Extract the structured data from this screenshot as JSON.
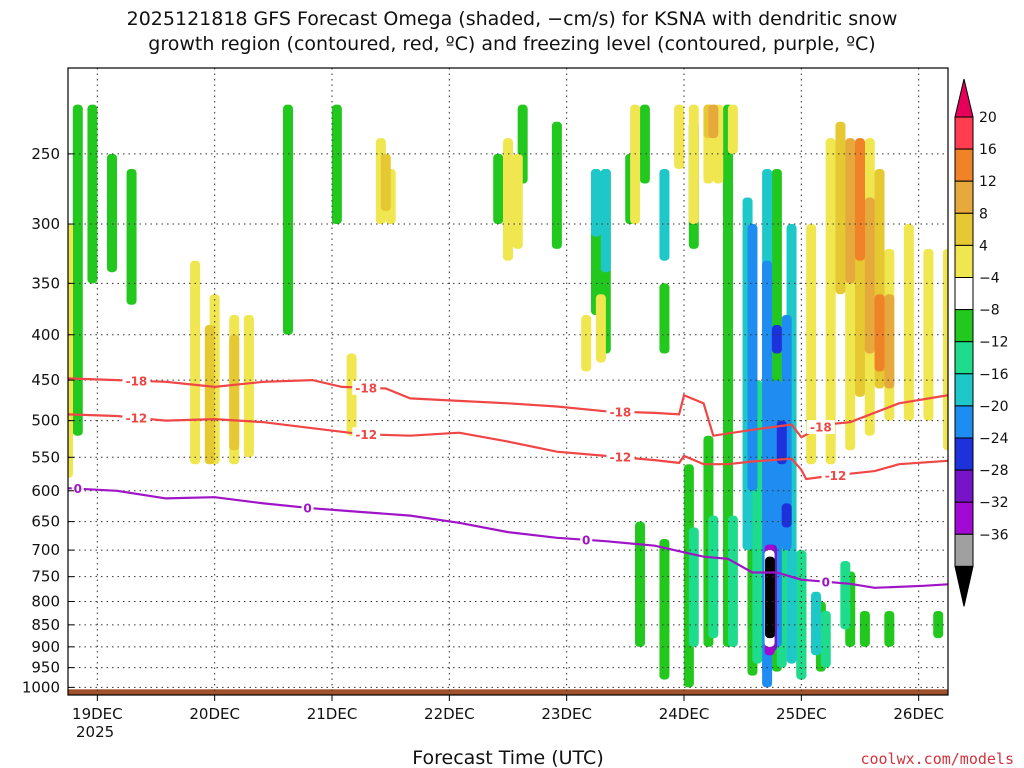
{
  "chart_data": {
    "type": "heatmap",
    "title_line1": "2025121818 GFS Forecast Omega (shaded, −cm/s) for KSNA with dendritic snow",
    "title_line2": "growth region (contoured, red, ºC) and freezing level (contoured, purple, ºC)",
    "xlabel": "Forecast Time (UTC)",
    "credit": "coolwx.com/models",
    "year_label": "2025",
    "x_ticks": [
      {
        "label": "19DEC",
        "hour": 6
      },
      {
        "label": "20DEC",
        "hour": 30
      },
      {
        "label": "21DEC",
        "hour": 54
      },
      {
        "label": "22DEC",
        "hour": 78
      },
      {
        "label": "23DEC",
        "hour": 102
      },
      {
        "label": "24DEC",
        "hour": 126
      },
      {
        "label": "25DEC",
        "hour": 150
      },
      {
        "label": "26DEC",
        "hour": 174
      }
    ],
    "xlim_hours": [
      0,
      180
    ],
    "y_ticks": [
      {
        "label": "250",
        "p": 250
      },
      {
        "label": "300",
        "p": 300
      },
      {
        "label": "350",
        "p": 350
      },
      {
        "label": "400",
        "p": 400
      },
      {
        "label": "450",
        "p": 450
      },
      {
        "label": "500",
        "p": 500
      },
      {
        "label": "550",
        "p": 550
      },
      {
        "label": "600",
        "p": 600
      },
      {
        "label": "650",
        "p": 650
      },
      {
        "label": "700",
        "p": 700
      },
      {
        "label": "750",
        "p": 750
      },
      {
        "label": "800",
        "p": 800
      },
      {
        "label": "850",
        "p": 850
      },
      {
        "label": "900",
        "p": 900
      },
      {
        "label": "950",
        "p": 950
      },
      {
        "label": "1000",
        "p": 1000
      }
    ],
    "ylim_hpa": [
      200,
      1020
    ],
    "y_scale": "log-pressure",
    "grid": true,
    "colorbar": {
      "labels": [
        "20",
        "16",
        "12",
        "8",
        "4",
        "−4",
        "−8",
        "−12",
        "−16",
        "−20",
        "−24",
        "−28",
        "−32",
        "−36"
      ],
      "colors": [
        "#ff3c50",
        "#f08228",
        "#e6aa3c",
        "#e6c832",
        "#f0e650",
        "#ffffff",
        "#22c81e",
        "#1edc8c",
        "#1ec8c8",
        "#1e8cf0",
        "#1e32dc",
        "#7814c8",
        "#a00ad2",
        "#a0a0a0"
      ],
      "top_arrow_color": "#e6005a",
      "bottom_arrow_color": "#000000"
    },
    "contours": [
      {
        "label": "-18",
        "color": "#f04646",
        "points": [
          [
            0,
            448
          ],
          [
            10,
            450
          ],
          [
            20,
            452
          ],
          [
            30,
            458
          ],
          [
            40,
            452
          ],
          [
            50,
            450
          ],
          [
            56,
            458
          ],
          [
            65,
            460
          ],
          [
            70,
            472
          ],
          [
            80,
            475
          ],
          [
            90,
            478
          ],
          [
            100,
            482
          ],
          [
            110,
            488
          ],
          [
            120,
            490
          ],
          [
            125,
            492
          ],
          [
            126,
            468
          ],
          [
            130,
            478
          ],
          [
            132,
            520
          ],
          [
            140,
            512
          ],
          [
            148,
            505
          ],
          [
            150,
            522
          ],
          [
            155,
            505
          ],
          [
            160,
            502
          ],
          [
            170,
            478
          ],
          [
            180,
            468
          ]
        ],
        "label_hours": [
          14,
          61,
          113,
          154
        ]
      },
      {
        "label": "-12",
        "color": "#f04646",
        "points": [
          [
            0,
            492
          ],
          [
            10,
            494
          ],
          [
            20,
            500
          ],
          [
            30,
            498
          ],
          [
            40,
            502
          ],
          [
            50,
            510
          ],
          [
            60,
            518
          ],
          [
            70,
            520
          ],
          [
            80,
            516
          ],
          [
            90,
            528
          ],
          [
            100,
            542
          ],
          [
            110,
            548
          ],
          [
            120,
            554
          ],
          [
            125,
            558
          ],
          [
            126,
            548
          ],
          [
            130,
            560
          ],
          [
            135,
            560
          ],
          [
            140,
            556
          ],
          [
            148,
            552
          ],
          [
            150,
            568
          ],
          [
            151,
            582
          ],
          [
            155,
            578
          ],
          [
            160,
            574
          ],
          [
            165,
            570
          ],
          [
            170,
            560
          ],
          [
            180,
            555
          ]
        ],
        "label_hours": [
          14,
          61,
          113,
          157
        ]
      },
      {
        "label": "0",
        "color": "#a014c8",
        "points": [
          [
            0,
            596
          ],
          [
            10,
            600
          ],
          [
            20,
            612
          ],
          [
            30,
            610
          ],
          [
            40,
            620
          ],
          [
            50,
            628
          ],
          [
            60,
            634
          ],
          [
            70,
            640
          ],
          [
            80,
            652
          ],
          [
            90,
            668
          ],
          [
            100,
            678
          ],
          [
            110,
            684
          ],
          [
            120,
            692
          ],
          [
            125,
            702
          ],
          [
            130,
            712
          ],
          [
            135,
            716
          ],
          [
            140,
            742
          ],
          [
            145,
            742
          ],
          [
            150,
            756
          ],
          [
            160,
            764
          ],
          [
            165,
            772
          ],
          [
            175,
            768
          ],
          [
            180,
            765
          ]
        ],
        "label_hours": [
          2,
          49,
          106,
          155
        ]
      }
    ],
    "shaded_regions": [
      {
        "color": "#22c81e",
        "cells": [
          [
            2,
            220,
            520
          ],
          [
            5,
            220,
            350
          ],
          [
            9,
            250,
            340
          ],
          [
            13,
            260,
            370
          ],
          [
            45,
            220,
            400
          ],
          [
            55,
            220,
            300
          ],
          [
            88,
            250,
            300
          ],
          [
            93,
            220,
            270
          ],
          [
            100,
            230,
            320
          ],
          [
            108,
            260,
            380
          ],
          [
            110,
            260,
            420
          ],
          [
            115,
            250,
            300
          ],
          [
            118,
            220,
            270
          ],
          [
            122,
            350,
            420
          ],
          [
            128,
            230,
            320
          ],
          [
            117,
            650,
            900
          ],
          [
            122,
            680,
            980
          ],
          [
            127,
            560,
            1000
          ],
          [
            131,
            520,
            900
          ],
          [
            135,
            220,
            900
          ],
          [
            140,
            620,
            970
          ],
          [
            145,
            260,
            960
          ],
          [
            150,
            700,
            980
          ],
          [
            154,
            800,
            960
          ],
          [
            160,
            740,
            900
          ],
          [
            163,
            820,
            900
          ],
          [
            168,
            820,
            900
          ],
          [
            178,
            820,
            880
          ]
        ]
      },
      {
        "color": "#1edc8c",
        "cells": [
          [
            128,
            660,
            900
          ],
          [
            132,
            640,
            880
          ],
          [
            136,
            640,
            900
          ],
          [
            141,
            450,
            940
          ],
          [
            146,
            480,
            950
          ],
          [
            150,
            700,
            980
          ],
          [
            155,
            820,
            950
          ],
          [
            159,
            720,
            860
          ]
        ]
      },
      {
        "color": "#1ec8c8",
        "cells": [
          [
            108,
            260,
            310
          ],
          [
            110,
            260,
            340
          ],
          [
            122,
            260,
            330
          ],
          [
            139,
            280,
            700
          ],
          [
            143,
            260,
            970
          ],
          [
            148,
            300,
            940
          ],
          [
            153,
            780,
            920
          ]
        ]
      },
      {
        "color": "#1e8cf0",
        "cells": [
          [
            140,
            300,
            600
          ],
          [
            143,
            330,
            1000
          ],
          [
            147,
            380,
            700
          ],
          [
            145,
            450,
            900
          ]
        ]
      },
      {
        "color": "#1e32dc",
        "cells": [
          [
            145,
            390,
            420
          ],
          [
            146,
            500,
            560
          ],
          [
            147,
            620,
            660
          ]
        ]
      },
      {
        "color": "#7814c8",
        "cells": [
          [
            144,
            690,
            910
          ]
        ]
      },
      {
        "color": "#a00ad2",
        "cells": [
          [
            143.5,
            690,
            920
          ]
        ]
      },
      {
        "color": "#ffffff",
        "cells": [
          [
            143.5,
            700,
            900
          ]
        ]
      },
      {
        "color": "#000000",
        "cells": [
          [
            143.6,
            712,
            880
          ]
        ]
      },
      {
        "color": "#f0e650",
        "cells": [
          [
            0,
            300,
            580
          ],
          [
            26,
            330,
            560
          ],
          [
            30,
            360,
            560
          ],
          [
            34,
            380,
            560
          ],
          [
            37,
            380,
            550
          ],
          [
            58,
            420,
            520
          ],
          [
            64,
            240,
            300
          ],
          [
            66,
            260,
            300
          ],
          [
            90,
            240,
            330
          ],
          [
            92,
            250,
            320
          ],
          [
            106,
            380,
            440
          ],
          [
            109,
            360,
            430
          ],
          [
            116,
            220,
            300
          ],
          [
            125,
            220,
            260
          ],
          [
            128,
            220,
            300
          ],
          [
            131,
            220,
            270
          ],
          [
            133,
            220,
            270
          ],
          [
            136,
            220,
            250
          ],
          [
            152,
            300,
            560
          ],
          [
            156,
            240,
            560
          ],
          [
            160,
            260,
            540
          ],
          [
            164,
            240,
            520
          ],
          [
            168,
            320,
            500
          ],
          [
            172,
            300,
            500
          ],
          [
            176,
            320,
            500
          ],
          [
            180,
            320,
            540
          ]
        ]
      },
      {
        "color": "#e6c832",
        "cells": [
          [
            29,
            390,
            560
          ],
          [
            34,
            400,
            540
          ],
          [
            65,
            250,
            290
          ],
          [
            131,
            220,
            240
          ],
          [
            158,
            230,
            360
          ],
          [
            162,
            260,
            470
          ],
          [
            166,
            260,
            460
          ]
        ]
      },
      {
        "color": "#e6aa3c",
        "cells": [
          [
            132,
            220,
            240
          ],
          [
            160,
            240,
            350
          ],
          [
            164,
            280,
            420
          ],
          [
            168,
            360,
            460
          ]
        ]
      },
      {
        "color": "#f08228",
        "cells": [
          [
            162,
            240,
            330
          ],
          [
            166,
            360,
            440
          ]
        ]
      }
    ],
    "ground_color": "#a0522d"
  }
}
